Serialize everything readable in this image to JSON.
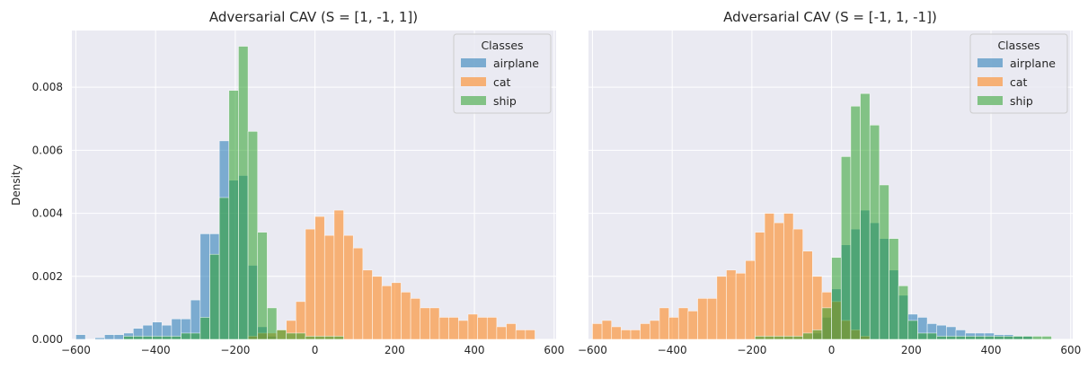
{
  "ylabel": "Density",
  "legend_title": "Classes",
  "colors": {
    "airplane": "#1f77b4",
    "cat": "#ff7f0e",
    "ship": "#2ca02c",
    "plot_bg": "#eaeaf2",
    "grid": "#ffffff"
  },
  "chart_data": [
    {
      "type": "histogram",
      "title": "Adversarial CAV (S = [1, -1, 1])",
      "xlabel": "",
      "ylabel": "Density",
      "xlim": [
        -610,
        605
      ],
      "ylim": [
        0,
        0.0098
      ],
      "x_ticks": [
        -600,
        -400,
        -200,
        0,
        200,
        400,
        600
      ],
      "y_ticks": [
        0.0,
        0.002,
        0.004,
        0.006,
        0.008
      ],
      "grid": true,
      "legend": {
        "title": "Classes",
        "placement": "top-right"
      },
      "bin_start": -600,
      "bin_width": 24,
      "series": [
        {
          "name": "airplane",
          "values": [
            0.00015,
            0,
            5e-05,
            0.00015,
            0.00015,
            0.0002,
            0.00035,
            0.00045,
            0.00055,
            0.00045,
            0.00065,
            0.00065,
            0.00125,
            0.00335,
            0.00335,
            0.0063,
            0.00505,
            0.0052,
            0.00235,
            0.0004,
            0.0001,
            0,
            0,
            0,
            0,
            0,
            0,
            0,
            0,
            0,
            0,
            0,
            0,
            0,
            0,
            0,
            0,
            0,
            0,
            0,
            0,
            0,
            0,
            0,
            0,
            0,
            0,
            0,
            0,
            0,
            0
          ]
        },
        {
          "name": "cat",
          "values": [
            0,
            0,
            0,
            0,
            0,
            0,
            0,
            0,
            0,
            0,
            0,
            0,
            0,
            0,
            0,
            0,
            0,
            0,
            0.0001,
            0.0002,
            0.0002,
            0.0003,
            0.0006,
            0.0012,
            0.0035,
            0.0039,
            0.0033,
            0.0041,
            0.0033,
            0.0029,
            0.0022,
            0.002,
            0.0017,
            0.0018,
            0.0015,
            0.0013,
            0.001,
            0.001,
            0.0007,
            0.0007,
            0.0006,
            0.0008,
            0.0007,
            0.0007,
            0.0004,
            0.0005,
            0.0003,
            0.0003,
            0,
            0,
            0
          ]
        },
        {
          "name": "ship",
          "values": [
            0,
            0,
            0,
            0,
            0,
            0.0001,
            0.0001,
            0.0001,
            0.0001,
            0.0001,
            0.0001,
            0.0002,
            0.0002,
            0.0007,
            0.0027,
            0.0045,
            0.0079,
            0.0093,
            0.0066,
            0.0034,
            0.001,
            0.0003,
            0.0002,
            0.0002,
            0.0001,
            0.0001,
            0.0001,
            0.0001,
            0,
            0,
            0,
            0,
            0,
            0,
            0,
            0,
            0,
            0,
            0,
            0,
            0,
            0,
            0,
            0,
            0,
            0,
            0,
            0,
            0,
            0,
            0
          ]
        }
      ]
    },
    {
      "type": "histogram",
      "title": "Adversarial CAV (S = [-1, 1, -1])",
      "xlabel": "",
      "ylabel": "",
      "xlim": [
        -610,
        605
      ],
      "ylim": [
        0,
        0.0098
      ],
      "x_ticks": [
        -600,
        -400,
        -200,
        0,
        200,
        400,
        600
      ],
      "y_ticks": [
        0.0,
        0.002,
        0.004,
        0.006,
        0.008
      ],
      "grid": true,
      "legend": {
        "title": "Classes",
        "placement": "top-right"
      },
      "bin_start": -600,
      "bin_width": 24,
      "series": [
        {
          "name": "airplane",
          "values": [
            0,
            0,
            0,
            0,
            0,
            0,
            0,
            0,
            0,
            0,
            0,
            0,
            0,
            0,
            0,
            0,
            0,
            0,
            0,
            0,
            0,
            0,
            0,
            0.0002,
            0.0007,
            0.0016,
            0.003,
            0.0035,
            0.0041,
            0.0037,
            0.0032,
            0.0022,
            0.0014,
            0.0008,
            0.0007,
            0.0005,
            0.00045,
            0.0004,
            0.0003,
            0.0002,
            0.0002,
            0.0002,
            0.00015,
            0.00015,
            0.0001,
            0.0001,
            0,
            0,
            0,
            0,
            0
          ]
        },
        {
          "name": "cat",
          "values": [
            0.0005,
            0.0006,
            0.0004,
            0.0003,
            0.0003,
            0.0005,
            0.0006,
            0.001,
            0.0007,
            0.001,
            0.0009,
            0.0013,
            0.0013,
            0.002,
            0.0022,
            0.0021,
            0.0025,
            0.0034,
            0.004,
            0.0037,
            0.004,
            0.0035,
            0.0028,
            0.002,
            0.0015,
            0.0012,
            0.0006,
            0.0003,
            0.0001,
            0,
            0,
            0,
            0,
            0,
            0,
            0,
            0,
            0,
            0,
            0,
            0,
            0,
            0,
            0,
            0,
            0,
            0,
            0,
            0,
            0,
            0
          ]
        },
        {
          "name": "ship",
          "values": [
            0,
            0,
            0,
            0,
            0,
            0,
            0,
            0,
            0,
            0,
            0,
            0,
            0,
            0,
            0,
            0,
            0,
            0.0001,
            0.0001,
            0.0001,
            0.0001,
            0.0001,
            0.0002,
            0.0003,
            0.001,
            0.0026,
            0.0058,
            0.0074,
            0.0078,
            0.0068,
            0.0049,
            0.0032,
            0.0017,
            0.0006,
            0.0002,
            0.0002,
            0.0001,
            0.0001,
            0.0001,
            0.0001,
            0.0001,
            0.0001,
            0.0001,
            0.0001,
            0.0001,
            0.0001,
            0.0001,
            0.0001,
            0,
            0,
            0
          ]
        }
      ]
    }
  ]
}
